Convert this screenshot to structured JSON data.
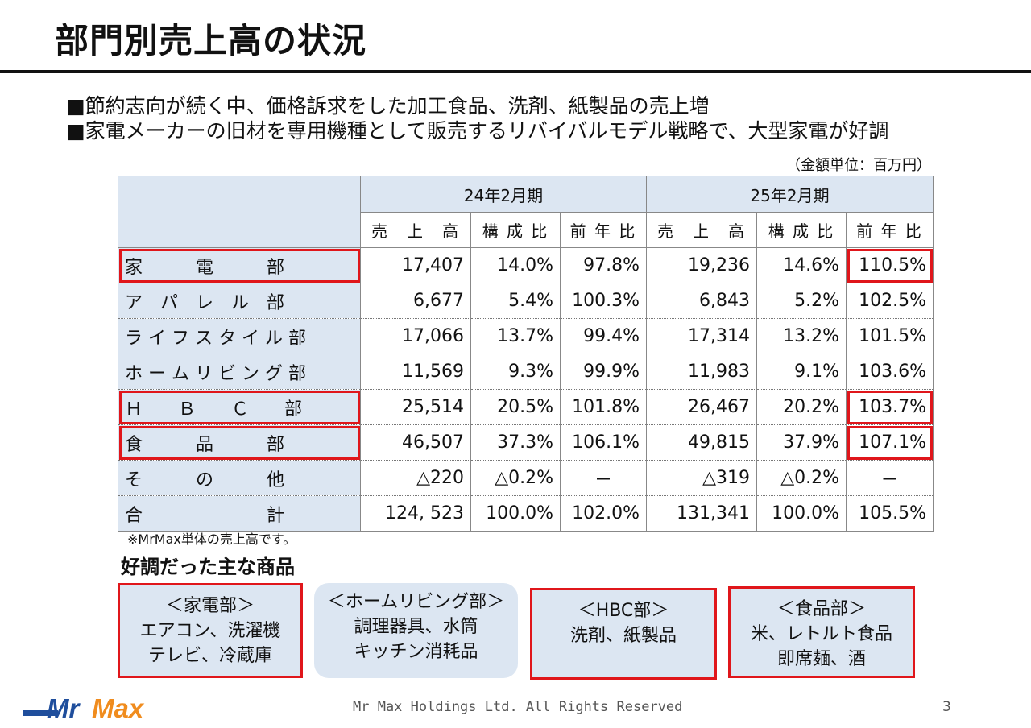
{
  "title": "部門別売上高の状況",
  "bullets": [
    "■節約志向が続く中、価格訴求をした加工食品、洗剤、紙製品の売上増",
    "■家電メーカーの旧材を専用機種として販売するリバイバルモデル戦略で、大型家電が好調"
  ],
  "unit_note": "（金額単位：百万円）",
  "table": {
    "periods": [
      "24年2月期",
      "25年2月期"
    ],
    "columns": [
      "売　上　高",
      "構 成 比",
      "前 年 比",
      "売　上　高",
      "構 成 比",
      "前 年 比"
    ],
    "rows": [
      {
        "dept": "家　　　電　　　部",
        "values": [
          "17,407",
          "14.0%",
          "97.8%",
          "19,236",
          "14.6%",
          "110.5%"
        ]
      },
      {
        "dept": "ア　パ　レ　ル　部",
        "values": [
          "6,677",
          "5.4%",
          "100.3%",
          "6,843",
          "5.2%",
          "102.5%"
        ]
      },
      {
        "dept": "ラ イ フ ス タ イ ル 部",
        "values": [
          "17,066",
          "13.7%",
          "99.4%",
          "17,314",
          "13.2%",
          "101.5%"
        ]
      },
      {
        "dept": "ホ ー ム リ ビ ン グ 部",
        "values": [
          "11,569",
          "9.3%",
          "99.9%",
          "11,983",
          "9.1%",
          "103.6%"
        ]
      },
      {
        "dept": "Ｈ　　Ｂ　　Ｃ　　部",
        "values": [
          "25,514",
          "20.5%",
          "101.8%",
          "26,467",
          "20.2%",
          "103.7%"
        ]
      },
      {
        "dept": "食　　　品　　　部",
        "values": [
          "46,507",
          "37.3%",
          "106.1%",
          "49,815",
          "37.9%",
          "107.1%"
        ]
      },
      {
        "dept": "そ　　　の　　　他",
        "values": [
          "△220",
          "△0.2%",
          "－",
          "△319",
          "△0.2%",
          "－"
        ]
      },
      {
        "dept": "合　　　　　　　計",
        "values": [
          "124, 523",
          "100.0%",
          "102.0%",
          "131,341",
          "100.0%",
          "105.5%"
        ]
      }
    ]
  },
  "footnote": "※MrMax単体の売上高です。",
  "products_heading": "好調だった主な商品",
  "products": [
    {
      "title": "＜家電部＞",
      "lines": [
        "エアコン、洗濯機",
        "テレビ、冷蔵庫"
      ]
    },
    {
      "title": "＜ホームリビング部＞",
      "lines": [
        "調理器具、水筒",
        "キッチン消耗品"
      ]
    },
    {
      "title": "＜HBC部＞",
      "lines": [
        "洗剤、紙製品",
        ""
      ]
    },
    {
      "title": "＜食品部＞",
      "lines": [
        "米、レトルト食品",
        "即席麺、酒"
      ]
    }
  ],
  "logo_text": "MrMax",
  "footer": "Mr Max Holdings Ltd. All Rights Reserved",
  "page_number": "3",
  "colors": {
    "accent_red": "#e0161b",
    "table_blue": "#dce6f2",
    "logo_blue": "#1f4e9c",
    "logo_orange": "#f08c1e"
  }
}
